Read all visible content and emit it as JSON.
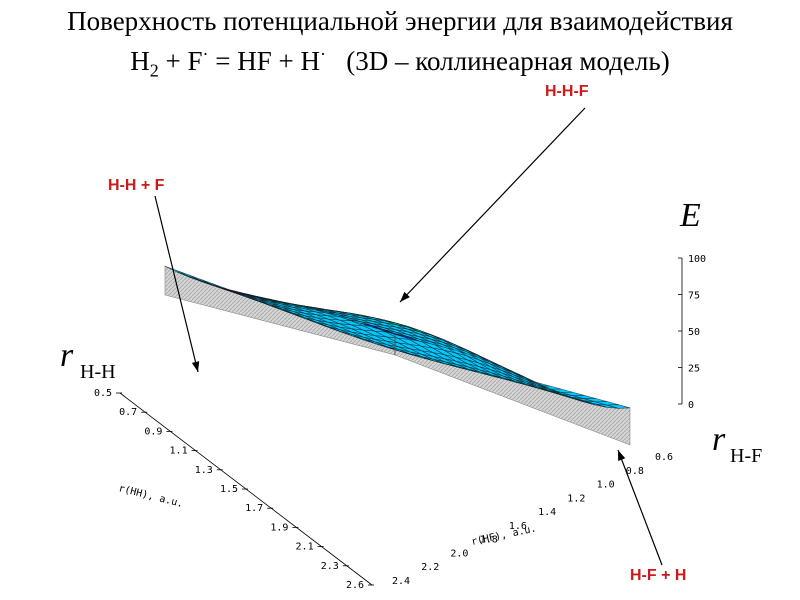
{
  "title": {
    "line1": "Поверхность потенциальной энергии для взаимодействия",
    "line2_a": "H",
    "line2_sub": "2",
    "line2_b": " + F",
    "line2_dot1": "·",
    "line2_c": " = HF + H",
    "line2_dot2": "·",
    "line2_d": "   (3D – коллинеарная модель)"
  },
  "annotations": {
    "hhf": "H-H-F",
    "hh_f": "H-H + F",
    "hf_h": "H-F + H"
  },
  "labels": {
    "energy": "E",
    "r_letter_hh": "r",
    "r_sub_hh": "H-H",
    "r_letter_hf": "r",
    "r_sub_hf": "H-F",
    "axis_hh": "r(HH), a.u.",
    "axis_hf": "r(HF), a.u."
  },
  "chart_data": {
    "type": "surface",
    "x_axis": {
      "name": "r(HH), a.u.",
      "ticks": [
        "0.5",
        "0.7",
        "0.9",
        "1.1",
        "1.3",
        "1.5",
        "1.7",
        "1.9",
        "2.1",
        "2.3",
        "2.6"
      ]
    },
    "y_axis": {
      "name": "r(HF), a.u.",
      "ticks": [
        "0.6",
        "0.8",
        "1.0",
        "1.2",
        "1.4",
        "1.6",
        "1.8",
        "2.0",
        "2.2",
        "2.4"
      ]
    },
    "z_axis": {
      "name": "E",
      "ticks": [
        "0",
        "25",
        "50",
        "75",
        "100"
      ]
    },
    "colormap": [
      "#3030f0",
      "#00c8ff",
      "#00e070",
      "#f0f000",
      "#ff9000",
      "#ff2000"
    ]
  }
}
